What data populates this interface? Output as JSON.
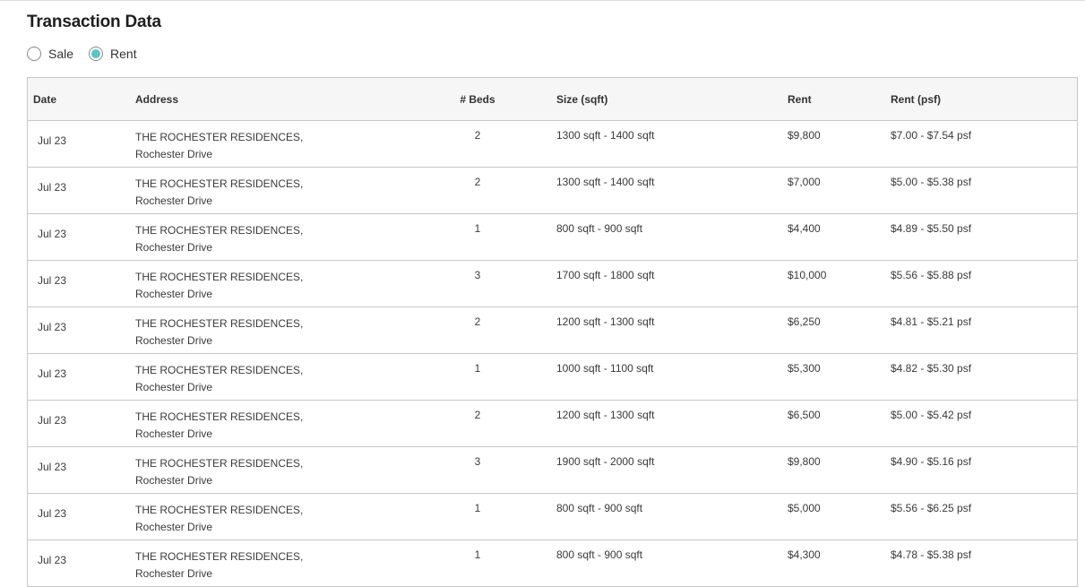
{
  "title": "Transaction Data",
  "type_options": [
    {
      "label": "Sale",
      "selected": false
    },
    {
      "label": "Rent",
      "selected": true
    }
  ],
  "accent_color": "#5bc4c4",
  "table": {
    "headers": [
      "Date",
      "Address",
      "# Beds",
      "Size (sqft)",
      "Rent",
      "Rent (psf)"
    ],
    "rows": [
      {
        "date": "Jul 23",
        "address1": "THE ROCHESTER RESIDENCES,",
        "address2": "Rochester Drive",
        "beds": "2",
        "size": "1300 sqft - 1400 sqft",
        "rent": "$9,800",
        "psf": "$7.00 - $7.54 psf"
      },
      {
        "date": "Jul 23",
        "address1": "THE ROCHESTER RESIDENCES,",
        "address2": "Rochester Drive",
        "beds": "2",
        "size": "1300 sqft - 1400 sqft",
        "rent": "$7,000",
        "psf": "$5.00 - $5.38 psf"
      },
      {
        "date": "Jul 23",
        "address1": "THE ROCHESTER RESIDENCES,",
        "address2": "Rochester Drive",
        "beds": "1",
        "size": "800 sqft - 900 sqft",
        "rent": "$4,400",
        "psf": "$4.89 - $5.50 psf"
      },
      {
        "date": "Jul 23",
        "address1": "THE ROCHESTER RESIDENCES,",
        "address2": "Rochester Drive",
        "beds": "3",
        "size": "1700 sqft - 1800 sqft",
        "rent": "$10,000",
        "psf": "$5.56 - $5.88 psf"
      },
      {
        "date": "Jul 23",
        "address1": "THE ROCHESTER RESIDENCES,",
        "address2": "Rochester Drive",
        "beds": "2",
        "size": "1200 sqft - 1300 sqft",
        "rent": "$6,250",
        "psf": "$4.81 - $5.21 psf"
      },
      {
        "date": "Jul 23",
        "address1": "THE ROCHESTER RESIDENCES,",
        "address2": "Rochester Drive",
        "beds": "1",
        "size": "1000 sqft - 1100 sqft",
        "rent": "$5,300",
        "psf": "$4.82 - $5.30 psf"
      },
      {
        "date": "Jul 23",
        "address1": "THE ROCHESTER RESIDENCES,",
        "address2": "Rochester Drive",
        "beds": "2",
        "size": "1200 sqft - 1300 sqft",
        "rent": "$6,500",
        "psf": "$5.00 - $5.42 psf"
      },
      {
        "date": "Jul 23",
        "address1": "THE ROCHESTER RESIDENCES,",
        "address2": "Rochester Drive",
        "beds": "3",
        "size": "1900 sqft - 2000 sqft",
        "rent": "$9,800",
        "psf": "$4.90 - $5.16 psf"
      },
      {
        "date": "Jul 23",
        "address1": "THE ROCHESTER RESIDENCES,",
        "address2": "Rochester Drive",
        "beds": "1",
        "size": "800 sqft - 900 sqft",
        "rent": "$5,000",
        "psf": "$5.56 - $6.25 psf"
      },
      {
        "date": "Jul 23",
        "address1": "THE ROCHESTER RESIDENCES,",
        "address2": "Rochester Drive",
        "beds": "1",
        "size": "800 sqft - 900 sqft",
        "rent": "$4,300",
        "psf": "$4.78 - $5.38 psf"
      }
    ]
  }
}
